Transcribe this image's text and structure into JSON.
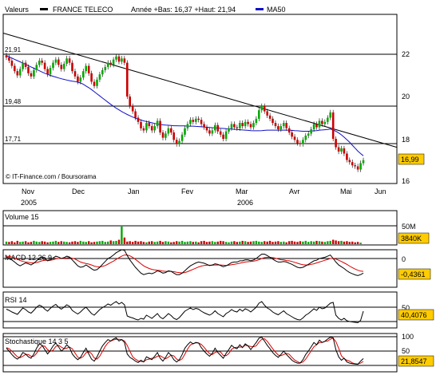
{
  "header": {
    "label": "Valeurs",
    "instrument": "FRANCE TELECO",
    "range_text": "Année +Bas: 16,37 +Haut: 21,94",
    "ma_label": "MA50"
  },
  "colors": {
    "up": "#00aa00",
    "down": "#cc0000",
    "ma": "#1010c8",
    "macd_signal": "#dd0000",
    "value_box": "#ffcc00",
    "panel_bg": "#ffffff"
  },
  "credit": "© IT-Finance.com / Boursorama",
  "chart_data": [
    {
      "type": "candlestick",
      "ylim": [
        16,
        23.5
      ],
      "yticks": [
        "16",
        "18",
        "20",
        "22"
      ],
      "current_value": "16,99",
      "months": [
        "Nov",
        "Dec",
        "Jan",
        "Fev",
        "Mar",
        "Avr",
        "Mai",
        "Jun"
      ],
      "years": [
        "2005",
        "2006"
      ],
      "level_lines": [
        {
          "label": "21,91",
          "value": 21.91
        },
        {
          "label": "19,48",
          "value": 19.48
        },
        {
          "label": "17,71",
          "value": 17.71
        }
      ],
      "trendline": {
        "start": 23.0,
        "end": 17.6
      },
      "close": [
        21.85,
        21.7,
        21.45,
        21.2,
        21.0,
        21.3,
        21.6,
        21.4,
        21.1,
        20.95,
        21.25,
        21.5,
        21.7,
        21.6,
        21.3,
        21.05,
        21.35,
        21.6,
        21.75,
        21.5,
        21.3,
        21.55,
        21.8,
        21.6,
        21.2,
        20.95,
        20.7,
        20.9,
        21.2,
        21.45,
        21.1,
        20.7,
        20.5,
        20.8,
        21.05,
        21.25,
        21.4,
        21.6,
        21.5,
        21.75,
        21.9,
        21.65,
        21.8,
        21.6,
        20.0,
        19.55,
        19.3,
        19.0,
        18.8,
        18.5,
        18.4,
        18.75,
        18.6,
        18.4,
        18.6,
        18.85,
        18.3,
        18.05,
        18.25,
        18.5,
        18.3,
        17.95,
        17.75,
        17.9,
        18.2,
        18.5,
        18.7,
        18.9,
        18.8,
        18.95,
        18.9,
        18.7,
        18.55,
        18.4,
        18.25,
        18.4,
        18.65,
        18.35,
        18.2,
        18.0,
        18.35,
        18.5,
        18.7,
        18.55,
        18.5,
        18.75,
        18.6,
        18.8,
        18.7,
        18.55,
        18.75,
        18.95,
        19.35,
        19.55,
        19.3,
        19.1,
        18.95,
        18.75,
        18.6,
        18.45,
        18.6,
        18.75,
        18.5,
        18.3,
        18.1,
        17.95,
        17.8,
        17.75,
        17.95,
        18.15,
        18.25,
        18.45,
        18.7,
        18.55,
        18.85,
        18.7,
        18.8,
        19.0,
        19.25,
        18.0,
        17.6,
        17.4,
        17.55,
        17.3,
        17.0,
        16.9,
        16.75,
        16.7,
        16.55,
        16.85,
        16.99
      ],
      "ma50": [
        21.94,
        21.88,
        21.82,
        21.76,
        21.7,
        21.64,
        21.58,
        21.52,
        21.46,
        21.4,
        21.34,
        21.28,
        21.22,
        21.16,
        21.1,
        21.05,
        21.0,
        20.96,
        20.92,
        20.88,
        20.84,
        20.81,
        20.78,
        20.75,
        20.73,
        20.71,
        20.68,
        20.64,
        20.58,
        20.5,
        20.42,
        20.33,
        20.23,
        20.13,
        20.03,
        19.93,
        19.83,
        19.73,
        19.63,
        19.54,
        19.45,
        19.37,
        19.29,
        19.22,
        19.15,
        19.09,
        19.03,
        18.98,
        18.93,
        18.89,
        18.85,
        18.82,
        18.79,
        18.76,
        18.73,
        18.7,
        18.68,
        18.66,
        18.65,
        18.64,
        18.63,
        18.62,
        18.62,
        18.61,
        18.61,
        18.61,
        18.6,
        18.6,
        18.6,
        18.59,
        18.58,
        18.57,
        18.56,
        18.55,
        18.54,
        18.53,
        18.52,
        18.51,
        18.5,
        18.49,
        18.48,
        18.47,
        18.46,
        18.45,
        18.44,
        18.43,
        18.42,
        18.41,
        18.4,
        18.39,
        18.38,
        18.38,
        18.38,
        18.39,
        18.4,
        18.41,
        18.41,
        18.41,
        18.41,
        18.41,
        18.41,
        18.41,
        18.41,
        18.41,
        18.4,
        18.39,
        18.38,
        18.37,
        18.36,
        18.36,
        18.36,
        18.37,
        18.38,
        18.39,
        18.41,
        18.42,
        18.43,
        18.44,
        18.46,
        18.42,
        18.36,
        18.28,
        18.19,
        18.08,
        17.96,
        17.84,
        17.7,
        17.56,
        17.42,
        17.3,
        17.2
      ]
    },
    {
      "type": "bar",
      "title": "Volume 15",
      "yticks": [
        "50M"
      ],
      "current_value": "3840K",
      "values": [
        7,
        6,
        8,
        5,
        9,
        6,
        7,
        8,
        5,
        6,
        9,
        7,
        6,
        8,
        7,
        5,
        6,
        7,
        9,
        6,
        8,
        7,
        6,
        5,
        7,
        8,
        6,
        9,
        7,
        6,
        8,
        5,
        6,
        7,
        8,
        9,
        6,
        7,
        10,
        8,
        9,
        12,
        48,
        18,
        7,
        8,
        6,
        9,
        7,
        8,
        6,
        5,
        7,
        8,
        6,
        7,
        9,
        6,
        8,
        7,
        5,
        6,
        8,
        7,
        9,
        6,
        7,
        8,
        6,
        7,
        5,
        8,
        9,
        6,
        7,
        8,
        6,
        7,
        9,
        8,
        6,
        5,
        7,
        8,
        6,
        7,
        9,
        8,
        6,
        7,
        8,
        9,
        7,
        6,
        8,
        7,
        9,
        6,
        7,
        8,
        6,
        7,
        5,
        8,
        9,
        7,
        6,
        8,
        7,
        9,
        6,
        8,
        7,
        9,
        8,
        7,
        6,
        8,
        9,
        12,
        10,
        8,
        9,
        7,
        8,
        6,
        7,
        5,
        6,
        4
      ]
    },
    {
      "type": "line",
      "title": "MACD 12 26 9",
      "yticks": [
        "0"
      ],
      "current_value": "-0,4361",
      "series": [
        {
          "values": [
            0.05,
            0.02,
            -0.05,
            -0.12,
            -0.2,
            -0.25,
            -0.2,
            -0.15,
            -0.18,
            -0.22,
            -0.16,
            -0.08,
            0.02,
            0.05,
            0.0,
            -0.08,
            -0.05,
            0.02,
            0.08,
            0.05,
            0.0,
            0.03,
            0.08,
            0.05,
            -0.05,
            -0.15,
            -0.25,
            -0.3,
            -0.28,
            -0.22,
            -0.28,
            -0.35,
            -0.4,
            -0.38,
            -0.3,
            -0.2,
            -0.1,
            0.0,
            0.05,
            0.12,
            0.2,
            0.25,
            0.3,
            0.28,
            0.1,
            -0.05,
            -0.18,
            -0.3,
            -0.4,
            -0.5,
            -0.55,
            -0.52,
            -0.5,
            -0.52,
            -0.48,
            -0.42,
            -0.45,
            -0.5,
            -0.48,
            -0.42,
            -0.44,
            -0.5,
            -0.55,
            -0.55,
            -0.5,
            -0.42,
            -0.33,
            -0.25,
            -0.2,
            -0.15,
            -0.12,
            -0.14,
            -0.16,
            -0.2,
            -0.24,
            -0.22,
            -0.18,
            -0.2,
            -0.24,
            -0.28,
            -0.25,
            -0.2,
            -0.14,
            -0.12,
            -0.12,
            -0.08,
            -0.08,
            -0.05,
            -0.05,
            -0.08,
            -0.05,
            0.0,
            0.08,
            0.15,
            0.15,
            0.1,
            0.04,
            -0.02,
            -0.08,
            -0.12,
            -0.12,
            -0.1,
            -0.12,
            -0.16,
            -0.2,
            -0.25,
            -0.3,
            -0.32,
            -0.3,
            -0.25,
            -0.2,
            -0.14,
            -0.08,
            -0.06,
            0.0,
            0.02,
            0.04,
            0.08,
            0.12,
            0.0,
            -0.12,
            -0.22,
            -0.28,
            -0.34,
            -0.42,
            -0.48,
            -0.52,
            -0.56,
            -0.58,
            -0.55,
            -0.5
          ]
        },
        {
          "values": [
            0.08,
            0.07,
            0.05,
            0.02,
            -0.02,
            -0.07,
            -0.1,
            -0.12,
            -0.13,
            -0.15,
            -0.15,
            -0.14,
            -0.11,
            -0.08,
            -0.06,
            -0.06,
            -0.06,
            -0.04,
            -0.01,
            0.0,
            0.0,
            0.01,
            0.02,
            0.03,
            0.01,
            -0.02,
            -0.07,
            -0.12,
            -0.15,
            -0.17,
            -0.19,
            -0.22,
            -0.26,
            -0.28,
            -0.29,
            -0.27,
            -0.24,
            -0.19,
            -0.14,
            -0.09,
            -0.03,
            0.03,
            0.08,
            0.12,
            0.12,
            0.09,
            0.04,
            -0.03,
            -0.1,
            -0.18,
            -0.25,
            -0.3,
            -0.34,
            -0.37,
            -0.39,
            -0.4,
            -0.41,
            -0.43,
            -0.44,
            -0.44,
            -0.44,
            -0.45,
            -0.47,
            -0.48,
            -0.49,
            -0.48,
            -0.45,
            -0.41,
            -0.37,
            -0.33,
            -0.29,
            -0.26,
            -0.24,
            -0.23,
            -0.23,
            -0.23,
            -0.22,
            -0.22,
            -0.22,
            -0.23,
            -0.24,
            -0.23,
            -0.21,
            -0.2,
            -0.18,
            -0.16,
            -0.14,
            -0.12,
            -0.11,
            -0.1,
            -0.09,
            -0.07,
            -0.04,
            0.0,
            0.03,
            0.04,
            0.04,
            0.03,
            0.01,
            -0.02,
            -0.04,
            -0.05,
            -0.07,
            -0.08,
            -0.1,
            -0.13,
            -0.16,
            -0.19,
            -0.21,
            -0.22,
            -0.22,
            -0.2,
            -0.18,
            -0.15,
            -0.12,
            -0.09,
            -0.06,
            -0.03,
            0.0,
            0.0,
            -0.02,
            -0.06,
            -0.1,
            -0.15,
            -0.2,
            -0.26,
            -0.31,
            -0.36,
            -0.4,
            -0.43,
            -0.44
          ]
        }
      ]
    },
    {
      "type": "line",
      "title": "RSI 14",
      "yticks": [
        "50"
      ],
      "current_value": "40,4076",
      "values": [
        45,
        42,
        38,
        35,
        32,
        40,
        48,
        44,
        38,
        35,
        42,
        50,
        55,
        52,
        45,
        40,
        47,
        53,
        57,
        50,
        45,
        50,
        56,
        52,
        42,
        37,
        33,
        38,
        45,
        50,
        42,
        34,
        30,
        37,
        44,
        49,
        53,
        58,
        55,
        60,
        64,
        58,
        62,
        56,
        28,
        25,
        23,
        20,
        18,
        22,
        20,
        30,
        26,
        22,
        28,
        34,
        25,
        21,
        27,
        34,
        29,
        22,
        19,
        24,
        32,
        40,
        44,
        48,
        44,
        47,
        45,
        40,
        36,
        33,
        30,
        34,
        41,
        34,
        30,
        26,
        34,
        38,
        44,
        40,
        38,
        45,
        40,
        46,
        43,
        38,
        44,
        50,
        60,
        64,
        55,
        48,
        44,
        38,
        34,
        31,
        36,
        41,
        34,
        30,
        26,
        22,
        19,
        18,
        23,
        30,
        34,
        40,
        46,
        42,
        50,
        46,
        48,
        54,
        60,
        62,
        30,
        22,
        18,
        22,
        16,
        14,
        13,
        12,
        11,
        17,
        40
      ]
    },
    {
      "type": "line",
      "title": "Stochastique 14 3 5",
      "yticks": [
        "100",
        "50"
      ],
      "current_value": "21,8547",
      "series": [
        {
          "values": [
            60,
            50,
            38,
            28,
            22,
            30,
            45,
            40,
            30,
            25,
            40,
            60,
            75,
            70,
            55,
            40,
            52,
            68,
            78,
            65,
            50,
            58,
            72,
            62,
            40,
            28,
            20,
            28,
            45,
            60,
            40,
            22,
            15,
            30,
            50,
            68,
            80,
            90,
            85,
            92,
            96,
            85,
            90,
            80,
            40,
            28,
            22,
            15,
            10,
            18,
            12,
            30,
            25,
            20,
            32,
            45,
            25,
            15,
            28,
            45,
            35,
            20,
            12,
            20,
            38,
            60,
            72,
            82,
            75,
            80,
            78,
            62,
            50,
            40,
            32,
            42,
            60,
            45,
            35,
            25,
            42,
            55,
            70,
            62,
            58,
            72,
            62,
            75,
            68,
            55,
            68,
            80,
            95,
            98,
            85,
            70,
            58,
            45,
            35,
            28,
            38,
            50,
            38,
            28,
            18,
            12,
            8,
            8,
            20,
            38,
            50,
            65,
            80,
            72,
            88,
            80,
            84,
            92,
            98,
            96,
            55,
            30,
            18,
            25,
            12,
            8,
            6,
            5,
            4,
            15,
            24
          ]
        },
        {
          "values": [
            62,
            58,
            50,
            40,
            30,
            27,
            32,
            38,
            38,
            32,
            32,
            42,
            58,
            68,
            67,
            55,
            49,
            53,
            66,
            70,
            64,
            58,
            60,
            64,
            58,
            43,
            29,
            25,
            31,
            44,
            48,
            41,
            26,
            22,
            32,
            49,
            66,
            79,
            85,
            89,
            91,
            91,
            90,
            85,
            70,
            49,
            30,
            22,
            16,
            14,
            13,
            20,
            22,
            25,
            26,
            32,
            34,
            28,
            23,
            29,
            36,
            33,
            22,
            17,
            23,
            39,
            57,
            71,
            76,
            79,
            78,
            73,
            63,
            51,
            41,
            38,
            45,
            49,
            47,
            35,
            34,
            41,
            56,
            62,
            63,
            64,
            64,
            70,
            68,
            66,
            65,
            68,
            81,
            91,
            93,
            84,
            71,
            58,
            46,
            36,
            34,
            38,
            42,
            39,
            28,
            19,
            13,
            9,
            12,
            22,
            36,
            51,
            65,
            72,
            80,
            80,
            84,
            85,
            91,
            95,
            83,
            60,
            34,
            24,
            18,
            15,
            9,
            6,
            5,
            8,
            14
          ]
        }
      ]
    }
  ]
}
